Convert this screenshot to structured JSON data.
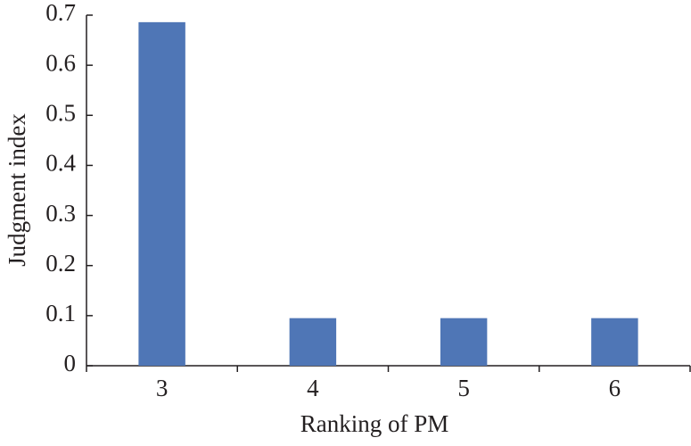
{
  "chart_data": {
    "type": "bar",
    "x_label": "Ranking of PM",
    "y_label": "Judgment index",
    "categories": [
      "3",
      "4",
      "5",
      "6"
    ],
    "values": [
      0.686,
      0.095,
      0.095,
      0.095
    ],
    "color": "#4f76b6",
    "ylim": [
      0,
      0.7
    ],
    "yticks": [
      0,
      0.1,
      0.2,
      0.3,
      0.4,
      0.5,
      0.6,
      0.7
    ],
    "grid": false
  }
}
